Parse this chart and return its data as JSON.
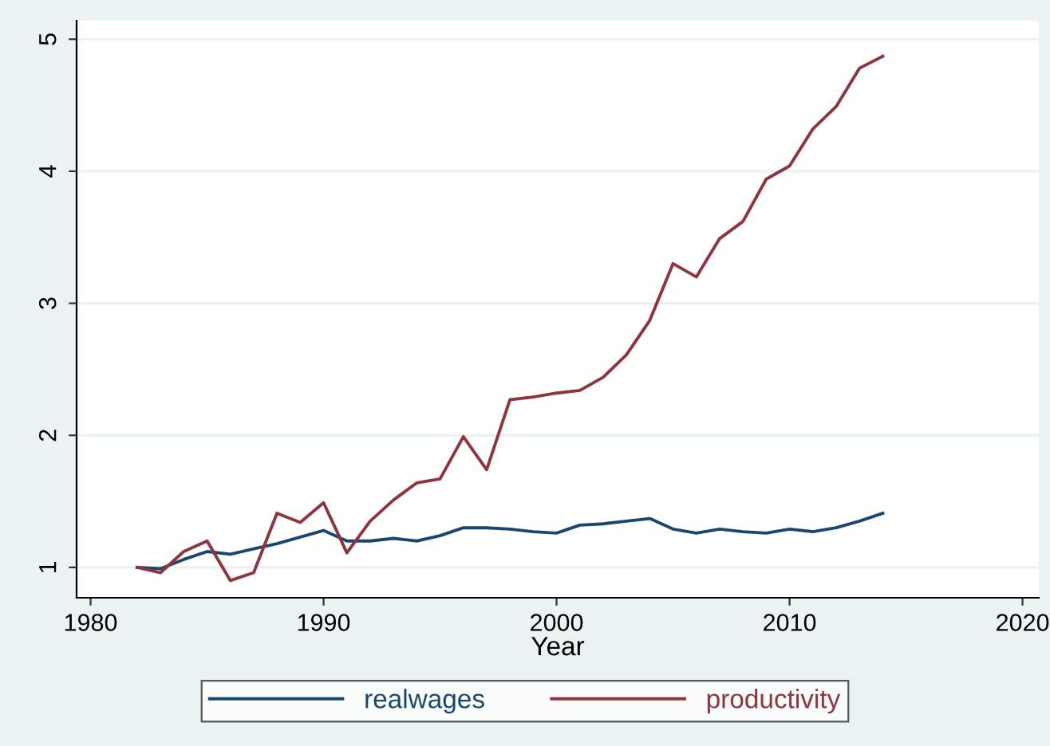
{
  "chart_data": {
    "type": "line",
    "xlabel": "Year",
    "x": [
      1982,
      1983,
      1984,
      1985,
      1986,
      1987,
      1988,
      1989,
      1990,
      1991,
      1992,
      1993,
      1994,
      1995,
      1996,
      1997,
      1998,
      1999,
      2000,
      2001,
      2002,
      2003,
      2004,
      2005,
      2006,
      2007,
      2008,
      2009,
      2010,
      2011,
      2012,
      2013,
      2014
    ],
    "series": [
      {
        "name": "realwages",
        "color": "#1a476f",
        "values": [
          1.0,
          0.99,
          1.06,
          1.12,
          1.1,
          1.14,
          1.18,
          1.23,
          1.28,
          1.2,
          1.2,
          1.22,
          1.2,
          1.24,
          1.3,
          1.3,
          1.29,
          1.27,
          1.26,
          1.32,
          1.33,
          1.35,
          1.37,
          1.29,
          1.26,
          1.29,
          1.27,
          1.26,
          1.29,
          1.27,
          1.3,
          1.35,
          1.41
        ]
      },
      {
        "name": "productivity",
        "color": "#90353b",
        "values": [
          1.0,
          0.96,
          1.12,
          1.2,
          0.9,
          0.96,
          1.41,
          1.34,
          1.49,
          1.11,
          1.35,
          1.51,
          1.64,
          1.67,
          1.99,
          1.74,
          2.27,
          2.29,
          2.32,
          2.34,
          2.44,
          2.61,
          2.87,
          3.3,
          3.2,
          3.49,
          3.62,
          3.94,
          4.04,
          4.32,
          4.49,
          4.78,
          4.87
        ]
      }
    ],
    "xlim": [
      1979.4,
      2020.7
    ],
    "ylim": [
      0.77,
      5.14
    ],
    "xticks": [
      1980,
      1990,
      2000,
      2010,
      2020
    ],
    "yticks": [
      1,
      2,
      3,
      4,
      5
    ],
    "grid": "y",
    "legend": "bottom",
    "marker": "none",
    "line_style": "solid"
  }
}
